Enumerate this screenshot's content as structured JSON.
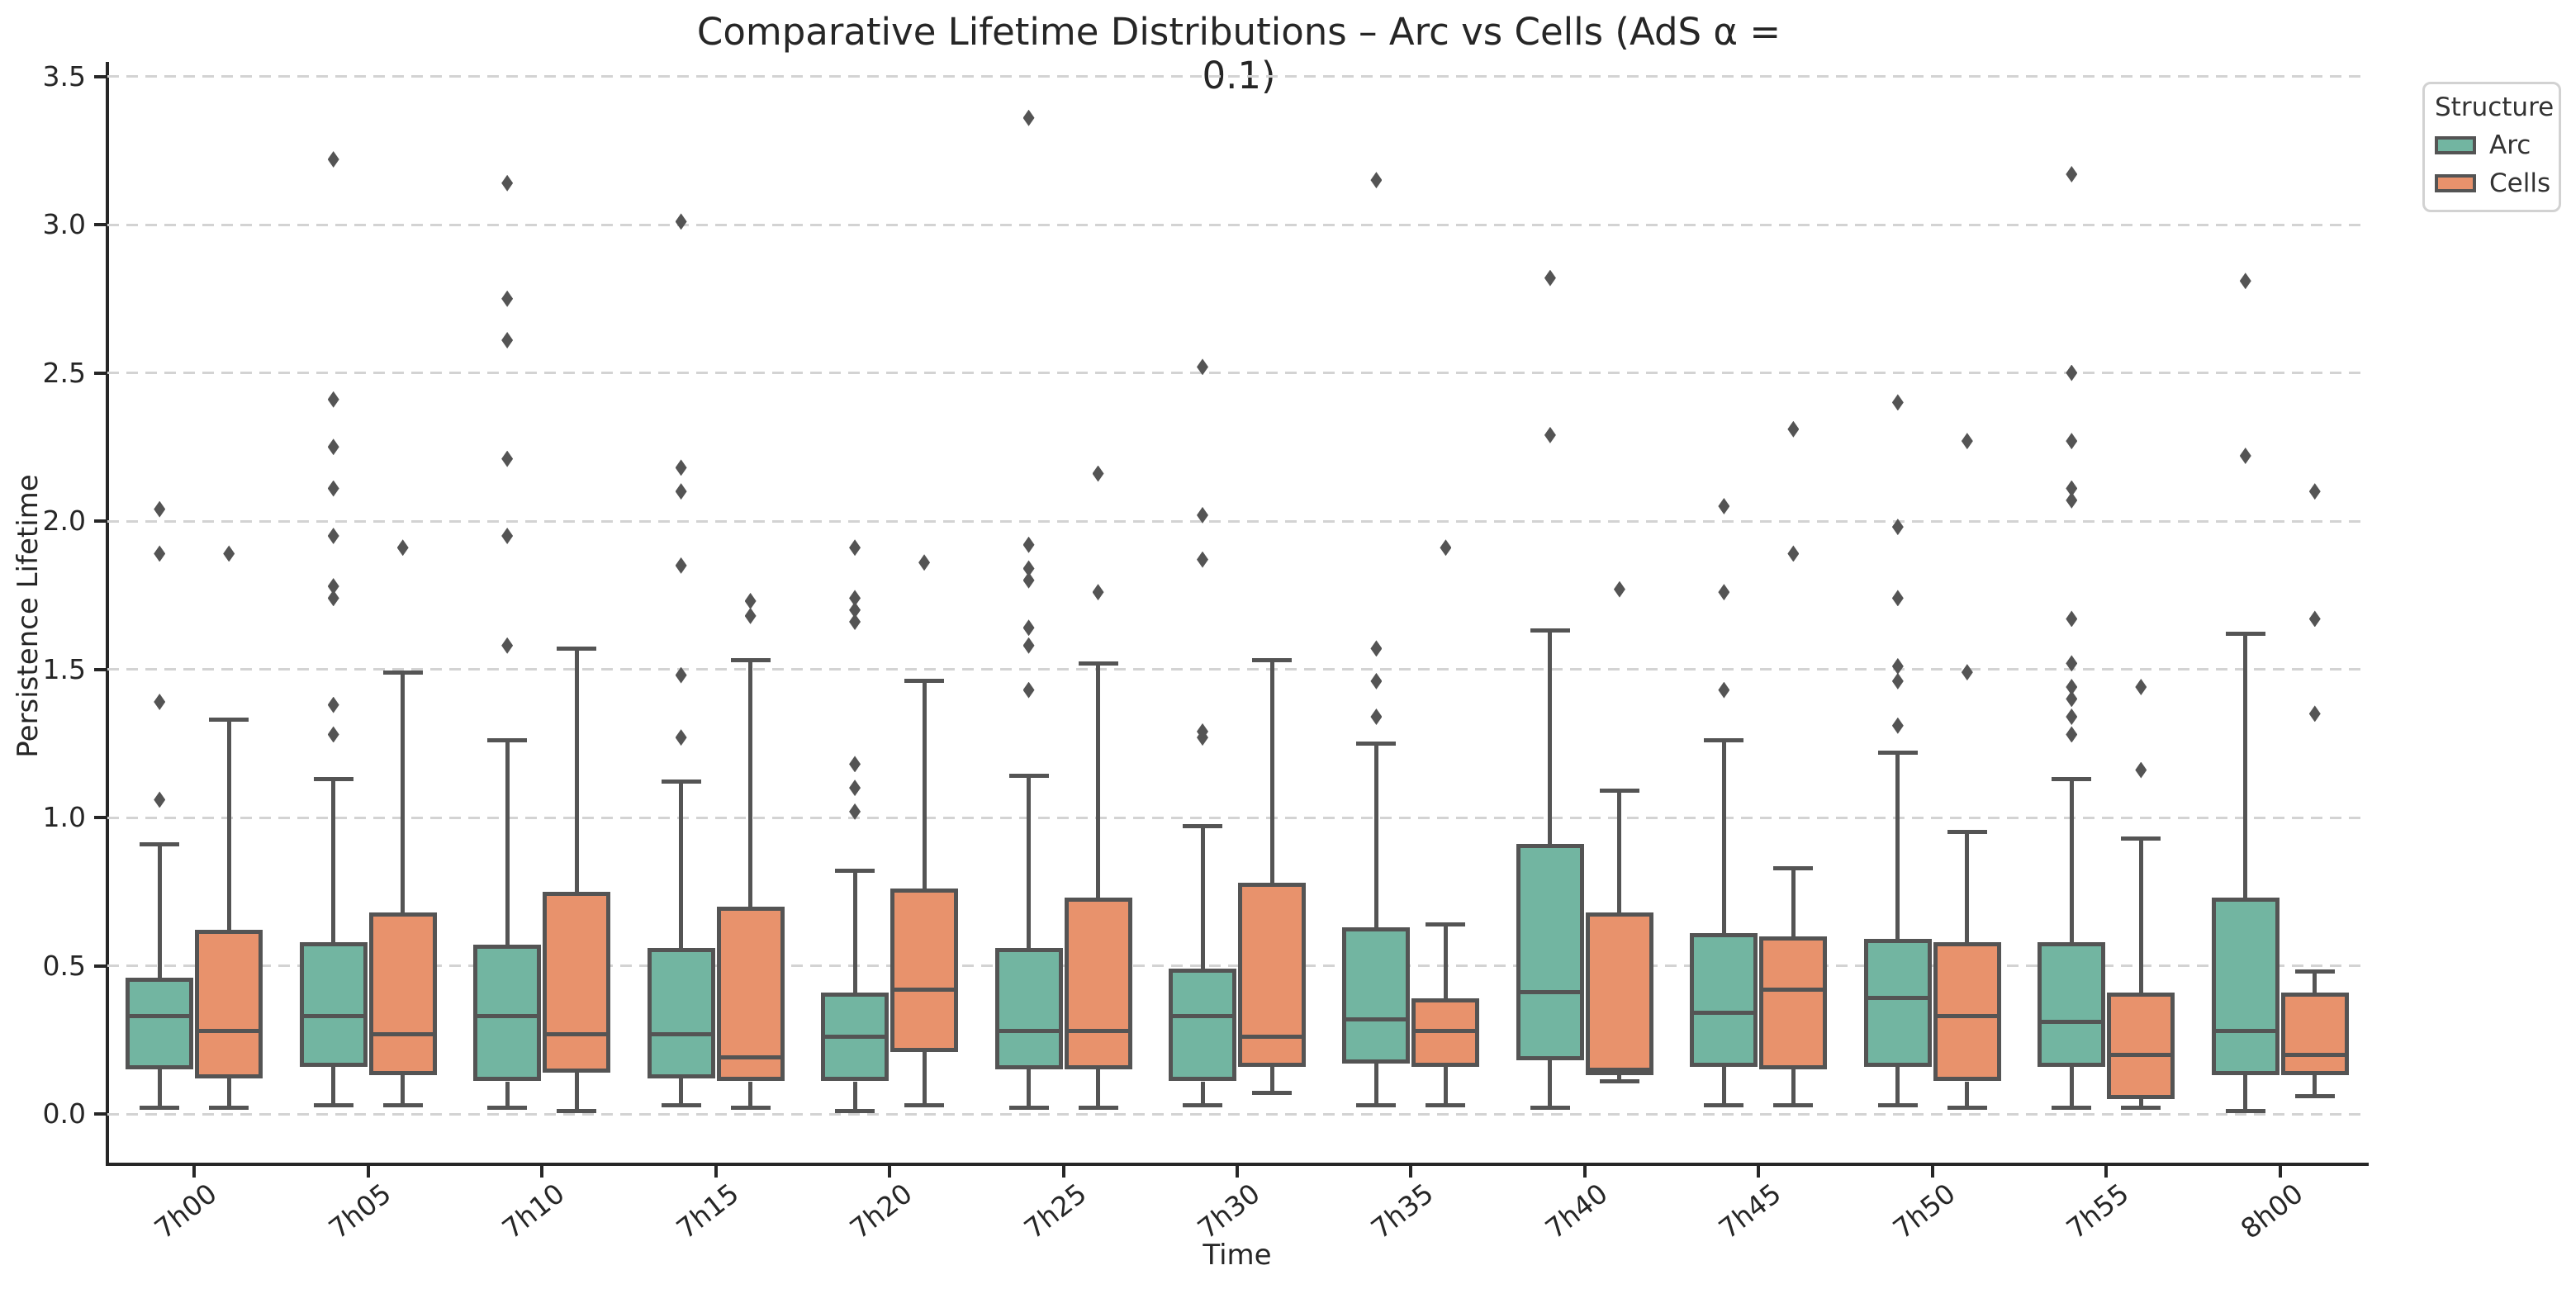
{
  "chart_data": {
    "type": "boxplot",
    "title": "Comparative Lifetime Distributions – Arc vs Cells (AdS α = 0.1)",
    "xlabel": "Time",
    "ylabel": "Persistence Lifetime",
    "legend": {
      "title": "Structure",
      "entries": [
        "Arc",
        "Cells"
      ],
      "position": "outside upper right"
    },
    "grid": {
      "axis": "y",
      "style": "dashed",
      "color": "#d3d3d3"
    },
    "colors": {
      "arc_fill": "#72b5a1",
      "cells_fill": "#e8926c",
      "edge": "#545454",
      "spine": "#262626"
    },
    "ylim": [
      -0.17,
      3.55
    ],
    "yticks": [
      "0.0",
      "0.5",
      "1.0",
      "1.5",
      "2.0",
      "2.5",
      "3.0",
      "3.5"
    ],
    "categories": [
      "7h00",
      "7h05",
      "7h10",
      "7h15",
      "7h20",
      "7h25",
      "7h30",
      "7h35",
      "7h40",
      "7h45",
      "7h50",
      "7h55",
      "8h00"
    ],
    "series": [
      {
        "name": "Arc",
        "color": "#72b5a1",
        "boxes": [
          {
            "whislo": 0.02,
            "q1": 0.15,
            "med": 0.33,
            "q3": 0.46,
            "whishi": 0.91,
            "fliers": [
              1.06,
              1.39,
              1.89,
              2.04
            ]
          },
          {
            "whislo": 0.03,
            "q1": 0.16,
            "med": 0.33,
            "q3": 0.58,
            "whishi": 1.13,
            "fliers": [
              1.28,
              1.38,
              1.74,
              1.78,
              1.95,
              2.11,
              2.25,
              2.41,
              3.22
            ]
          },
          {
            "whislo": 0.02,
            "q1": 0.11,
            "med": 0.33,
            "q3": 0.57,
            "whishi": 1.26,
            "fliers": [
              1.58,
              1.95,
              2.21,
              2.61,
              2.75,
              3.14
            ]
          },
          {
            "whislo": 0.03,
            "q1": 0.12,
            "med": 0.27,
            "q3": 0.56,
            "whishi": 1.12,
            "fliers": [
              1.27,
              1.48,
              1.85,
              2.1,
              2.18,
              3.01
            ]
          },
          {
            "whislo": 0.01,
            "q1": 0.11,
            "med": 0.26,
            "q3": 0.41,
            "whishi": 0.82,
            "fliers": [
              1.02,
              1.1,
              1.18,
              1.66,
              1.7,
              1.74,
              1.91
            ]
          },
          {
            "whislo": 0.02,
            "q1": 0.15,
            "med": 0.28,
            "q3": 0.56,
            "whishi": 1.14,
            "fliers": [
              1.43,
              1.58,
              1.64,
              1.8,
              1.84,
              1.92,
              3.36
            ]
          },
          {
            "whislo": 0.03,
            "q1": 0.11,
            "med": 0.33,
            "q3": 0.49,
            "whishi": 0.97,
            "fliers": [
              1.27,
              1.29,
              1.87,
              2.02,
              2.52
            ]
          },
          {
            "whislo": 0.03,
            "q1": 0.17,
            "med": 0.32,
            "q3": 0.63,
            "whishi": 1.25,
            "fliers": [
              1.34,
              1.46,
              1.57,
              3.15
            ]
          },
          {
            "whislo": 0.02,
            "q1": 0.18,
            "med": 0.41,
            "q3": 0.91,
            "whishi": 1.63,
            "fliers": [
              2.29,
              2.82
            ]
          },
          {
            "whislo": 0.03,
            "q1": 0.16,
            "med": 0.34,
            "q3": 0.61,
            "whishi": 1.26,
            "fliers": [
              1.43,
              1.76,
              2.05
            ]
          },
          {
            "whislo": 0.03,
            "q1": 0.16,
            "med": 0.39,
            "q3": 0.59,
            "whishi": 1.22,
            "fliers": [
              1.31,
              1.46,
              1.51,
              1.74,
              1.98,
              2.4
            ]
          },
          {
            "whislo": 0.02,
            "q1": 0.16,
            "med": 0.31,
            "q3": 0.58,
            "whishi": 1.13,
            "fliers": [
              1.28,
              1.34,
              1.4,
              1.44,
              1.52,
              1.67,
              2.07,
              2.11,
              2.27,
              2.5,
              3.17
            ]
          },
          {
            "whislo": 0.01,
            "q1": 0.13,
            "med": 0.28,
            "q3": 0.73,
            "whishi": 1.62,
            "fliers": [
              2.22,
              2.81
            ]
          }
        ]
      },
      {
        "name": "Cells",
        "color": "#e8926c",
        "boxes": [
          {
            "whislo": 0.02,
            "q1": 0.12,
            "med": 0.28,
            "q3": 0.62,
            "whishi": 1.33,
            "fliers": [
              1.89
            ]
          },
          {
            "whislo": 0.03,
            "q1": 0.13,
            "med": 0.27,
            "q3": 0.68,
            "whishi": 1.49,
            "fliers": [
              1.91
            ]
          },
          {
            "whislo": 0.01,
            "q1": 0.14,
            "med": 0.27,
            "q3": 0.75,
            "whishi": 1.57,
            "fliers": []
          },
          {
            "whislo": 0.02,
            "q1": 0.11,
            "med": 0.19,
            "q3": 0.7,
            "whishi": 1.53,
            "fliers": [
              1.68,
              1.73
            ]
          },
          {
            "whislo": 0.03,
            "q1": 0.21,
            "med": 0.42,
            "q3": 0.76,
            "whishi": 1.46,
            "fliers": [
              1.86
            ]
          },
          {
            "whislo": 0.02,
            "q1": 0.15,
            "med": 0.28,
            "q3": 0.73,
            "whishi": 1.52,
            "fliers": [
              1.76,
              2.16
            ]
          },
          {
            "whislo": 0.07,
            "q1": 0.16,
            "med": 0.26,
            "q3": 0.78,
            "whishi": 1.53,
            "fliers": []
          },
          {
            "whislo": 0.03,
            "q1": 0.16,
            "med": 0.28,
            "q3": 0.39,
            "whishi": 0.64,
            "fliers": [
              1.91
            ]
          },
          {
            "whislo": 0.11,
            "q1": 0.13,
            "med": 0.15,
            "q3": 0.68,
            "whishi": 1.09,
            "fliers": [
              1.77
            ]
          },
          {
            "whislo": 0.03,
            "q1": 0.15,
            "med": 0.42,
            "q3": 0.6,
            "whishi": 0.83,
            "fliers": [
              1.89,
              2.31
            ]
          },
          {
            "whislo": 0.02,
            "q1": 0.11,
            "med": 0.33,
            "q3": 0.58,
            "whishi": 0.95,
            "fliers": [
              1.49,
              2.27
            ]
          },
          {
            "whislo": 0.02,
            "q1": 0.05,
            "med": 0.2,
            "q3": 0.41,
            "whishi": 0.93,
            "fliers": [
              1.16,
              1.44
            ]
          },
          {
            "whislo": 0.06,
            "q1": 0.13,
            "med": 0.2,
            "q3": 0.41,
            "whishi": 0.48,
            "fliers": [
              1.35,
              1.67,
              2.1
            ]
          }
        ]
      }
    ]
  }
}
